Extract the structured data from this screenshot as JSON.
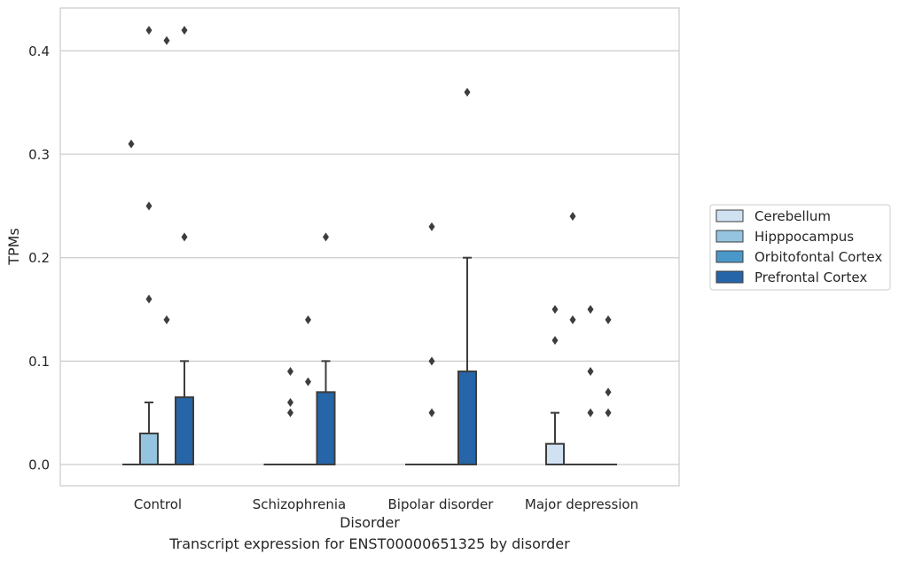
{
  "chart_data": {
    "type": "box",
    "caption": "Transcript expression for ENST00000651325 by disorder",
    "xlabel": "Disorder",
    "ylabel": "TPMs",
    "ylim": [
      -0.02,
      0.44
    ],
    "yticks": [
      0.0,
      0.1,
      0.2,
      0.3,
      0.4
    ],
    "ytick_labels": [
      "0.0",
      "0.1",
      "0.2",
      "0.3",
      "0.4"
    ],
    "grid": "horizontal",
    "legend_position": "right",
    "categories": [
      "Control",
      "Schizophrenia",
      "Bipolar disorder",
      "Major depression"
    ],
    "series": [
      {
        "name": "Cerebellum",
        "color": "#d0e1f2",
        "boxes": [
          {
            "q1": 0,
            "median": 0,
            "q3": 0,
            "whisker_low": 0,
            "whisker_high": 0,
            "outliers": [
              0.31
            ]
          },
          {
            "q1": 0,
            "median": 0,
            "q3": 0,
            "whisker_low": 0,
            "whisker_high": 0,
            "outliers": []
          },
          {
            "q1": 0,
            "median": 0,
            "q3": 0,
            "whisker_low": 0,
            "whisker_high": 0,
            "outliers": []
          },
          {
            "q1": 0,
            "median": 0,
            "q3": 0.02,
            "whisker_low": 0,
            "whisker_high": 0.05,
            "outliers": [
              0.12,
              0.15
            ]
          }
        ]
      },
      {
        "name": "Hipppocampus",
        "color": "#94c4df",
        "boxes": [
          {
            "q1": 0,
            "median": 0,
            "q3": 0.03,
            "whisker_low": 0,
            "whisker_high": 0.06,
            "outliers": [
              0.16,
              0.25,
              0.42
            ]
          },
          {
            "q1": 0,
            "median": 0,
            "q3": 0,
            "whisker_low": 0,
            "whisker_high": 0,
            "outliers": [
              0.05,
              0.06,
              0.09
            ]
          },
          {
            "q1": 0,
            "median": 0,
            "q3": 0,
            "whisker_low": 0,
            "whisker_high": 0,
            "outliers": [
              0.05,
              0.1,
              0.23
            ]
          },
          {
            "q1": 0,
            "median": 0,
            "q3": 0,
            "whisker_low": 0,
            "whisker_high": 0,
            "outliers": [
              0.14,
              0.24
            ]
          }
        ]
      },
      {
        "name": "Orbitofontal Cortex",
        "color": "#4a98c9",
        "boxes": [
          {
            "q1": 0,
            "median": 0,
            "q3": 0,
            "whisker_low": 0,
            "whisker_high": 0,
            "outliers": [
              0.14,
              0.41
            ]
          },
          {
            "q1": 0,
            "median": 0,
            "q3": 0,
            "whisker_low": 0,
            "whisker_high": 0,
            "outliers": [
              0.08,
              0.14
            ]
          },
          {
            "q1": 0,
            "median": 0,
            "q3": 0,
            "whisker_low": 0,
            "whisker_high": 0,
            "outliers": []
          },
          {
            "q1": 0,
            "median": 0,
            "q3": 0,
            "whisker_low": 0,
            "whisker_high": 0,
            "outliers": [
              0.05,
              0.09,
              0.15
            ]
          }
        ]
      },
      {
        "name": "Prefrontal Cortex",
        "color": "#2565a8",
        "boxes": [
          {
            "q1": 0,
            "median": 0,
            "q3": 0.065,
            "whisker_low": 0,
            "whisker_high": 0.1,
            "outliers": [
              0.22,
              0.42
            ]
          },
          {
            "q1": 0,
            "median": 0,
            "q3": 0.07,
            "whisker_low": 0,
            "whisker_high": 0.1,
            "outliers": [
              0.22
            ]
          },
          {
            "q1": 0,
            "median": 0,
            "q3": 0.09,
            "whisker_low": 0,
            "whisker_high": 0.2,
            "outliers": [
              0.36
            ]
          },
          {
            "q1": 0,
            "median": 0,
            "q3": 0,
            "whisker_low": 0,
            "whisker_high": 0,
            "outliers": [
              0.05,
              0.07,
              0.14
            ]
          }
        ]
      }
    ]
  }
}
